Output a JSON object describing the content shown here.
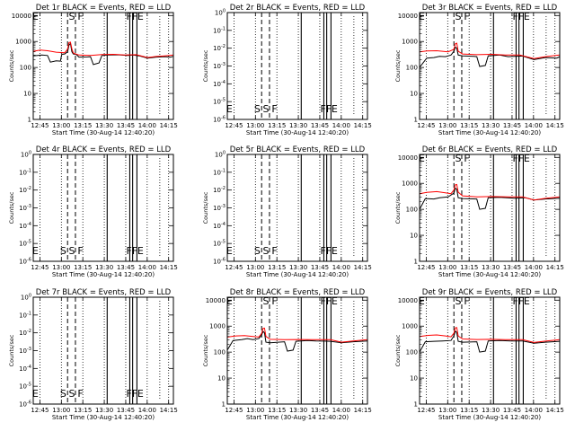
{
  "window": {
    "background": "#ffffff"
  },
  "colors": {
    "events": "#000000",
    "lld": "#ff0000",
    "axes": "#000000"
  },
  "shared": {
    "xlabel": "Start Time (30-Aug-14 12:40:20)",
    "ylabel": "Counts/sec",
    "x_ticks": [
      "12:45",
      "13:00",
      "13:15",
      "13:30",
      "13:45",
      "14:00",
      "14:15"
    ],
    "x_tick_values_min": [
      4.67,
      19.67,
      34.67,
      49.67,
      64.67,
      79.67,
      94.67
    ],
    "x_range_min": [
      0,
      98
    ],
    "y_scale": "log",
    "y_ticks_full": [
      "1",
      "10",
      "100",
      "1000",
      "10000"
    ],
    "y_ticks_flat": [
      "10^0",
      "10^-1",
      "10^-2",
      "10^-3",
      "10^-4",
      "10^-5",
      "10^-6"
    ],
    "dotted_vlines_min": [
      4.67,
      19.67,
      34.67,
      49.67,
      64.67,
      79.67,
      94.67
    ],
    "dashed_vlines_min": [
      24,
      29.5
    ],
    "solid_vlines_min": [
      51.7,
      67.5,
      69.5,
      72.5
    ],
    "bracket_vlines_min": [
      88.5
    ],
    "markers": [
      {
        "text": "E",
        "x_min": 1.5
      },
      {
        "text": "S",
        "x_min": 27
      },
      {
        "text": "F",
        "x_min": 33
      },
      {
        "text": "F",
        "x_min": 67
      },
      {
        "text": "F",
        "x_min": 71
      },
      {
        "text": "E",
        "x_min": 75
      }
    ],
    "markers_flat": [
      {
        "text": "E",
        "x_min": 1.5
      },
      {
        "text": "S",
        "x_min": 21
      },
      {
        "text": "S",
        "x_min": 27
      },
      {
        "text": "F",
        "x_min": 33
      },
      {
        "text": "F",
        "x_min": 67
      },
      {
        "text": "F",
        "x_min": 71
      },
      {
        "text": "E",
        "x_min": 75
      }
    ]
  },
  "chart_data": [
    {
      "type": "line",
      "title": "Det 1r BLACK = Events, RED = LLD",
      "mode": "full",
      "ylim": [
        1,
        13000
      ],
      "series": [
        {
          "color": "black",
          "values": [
            [
              0,
              280
            ],
            [
              6,
              300
            ],
            [
              10,
              290
            ],
            [
              12,
              160
            ],
            [
              16,
              180
            ],
            [
              19,
              175
            ],
            [
              20,
              320
            ],
            [
              22,
              330
            ],
            [
              24,
              400
            ],
            [
              25,
              720
            ],
            [
              26,
              850
            ],
            [
              27,
              400
            ],
            [
              28,
              330
            ],
            [
              30,
              320
            ],
            [
              32,
              250
            ],
            [
              38,
              255
            ],
            [
              40,
              260
            ],
            [
              42,
              130
            ],
            [
              46,
              150
            ],
            [
              48,
              290
            ],
            [
              52,
              300
            ],
            [
              60,
              305
            ],
            [
              66,
              290
            ],
            [
              70,
              300
            ],
            [
              74,
              280
            ],
            [
              80,
              230
            ],
            [
              86,
              250
            ],
            [
              92,
              260
            ],
            [
              96,
              250
            ],
            [
              98,
              270
            ]
          ]
        },
        {
          "color": "red",
          "values": [
            [
              0,
              420
            ],
            [
              5,
              470
            ],
            [
              10,
              440
            ],
            [
              16,
              390
            ],
            [
              22,
              370
            ],
            [
              24,
              500
            ],
            [
              25,
              900
            ],
            [
              26,
              950
            ],
            [
              27,
              520
            ],
            [
              28,
              360
            ],
            [
              32,
              300
            ],
            [
              40,
              290
            ],
            [
              48,
              315
            ],
            [
              56,
              320
            ],
            [
              64,
              300
            ],
            [
              72,
              310
            ],
            [
              80,
              240
            ],
            [
              86,
              265
            ],
            [
              92,
              280
            ],
            [
              98,
              300
            ]
          ]
        }
      ]
    },
    {
      "type": "line",
      "title": "Det 2r BLACK = Events, RED = LLD",
      "mode": "flat",
      "ylim": [
        1e-06,
        1
      ],
      "series": []
    },
    {
      "type": "line",
      "title": "Det 3r BLACK = Events, RED = LLD",
      "mode": "full",
      "ylim": [
        1,
        13000
      ],
      "series": [
        {
          "color": "black",
          "values": [
            [
              0,
              100
            ],
            [
              5,
              230
            ],
            [
              10,
              240
            ],
            [
              14,
              270
            ],
            [
              18,
              260
            ],
            [
              22,
              300
            ],
            [
              24,
              420
            ],
            [
              25,
              600
            ],
            [
              26,
              560
            ],
            [
              27,
              300
            ],
            [
              30,
              280
            ],
            [
              38,
              270
            ],
            [
              40,
              260
            ],
            [
              42,
              110
            ],
            [
              46,
              120
            ],
            [
              48,
              280
            ],
            [
              56,
              300
            ],
            [
              62,
              260
            ],
            [
              66,
              270
            ],
            [
              72,
              275
            ],
            [
              80,
              200
            ],
            [
              88,
              240
            ],
            [
              96,
              230
            ],
            [
              98,
              260
            ]
          ]
        },
        {
          "color": "red",
          "values": [
            [
              0,
              400
            ],
            [
              5,
              430
            ],
            [
              12,
              440
            ],
            [
              20,
              400
            ],
            [
              24,
              500
            ],
            [
              25,
              820
            ],
            [
              26,
              860
            ],
            [
              27,
              420
            ],
            [
              30,
              330
            ],
            [
              40,
              310
            ],
            [
              50,
              320
            ],
            [
              60,
              300
            ],
            [
              70,
              300
            ],
            [
              80,
              220
            ],
            [
              88,
              260
            ],
            [
              98,
              300
            ]
          ]
        }
      ]
    },
    {
      "type": "line",
      "title": "Det 4r BLACK = Events, RED = LLD",
      "mode": "flat",
      "ylim": [
        1e-06,
        1
      ],
      "series": []
    },
    {
      "type": "line",
      "title": "Det 5r BLACK = Events, RED = LLD",
      "mode": "flat",
      "ylim": [
        1e-06,
        1
      ],
      "series": []
    },
    {
      "type": "line",
      "title": "Det 6r BLACK = Events, RED = LLD",
      "mode": "full",
      "ylim": [
        1,
        13000
      ],
      "series": [
        {
          "color": "black",
          "values": [
            [
              0,
              100
            ],
            [
              4,
              260
            ],
            [
              10,
              250
            ],
            [
              14,
              280
            ],
            [
              20,
              300
            ],
            [
              24,
              420
            ],
            [
              25,
              650
            ],
            [
              26,
              600
            ],
            [
              27,
              280
            ],
            [
              30,
              260
            ],
            [
              40,
              250
            ],
            [
              42,
              100
            ],
            [
              46,
              110
            ],
            [
              48,
              280
            ],
            [
              56,
              290
            ],
            [
              66,
              270
            ],
            [
              74,
              280
            ],
            [
              80,
              230
            ],
            [
              88,
              250
            ],
            [
              98,
              270
            ]
          ]
        },
        {
          "color": "red",
          "values": [
            [
              0,
              400
            ],
            [
              5,
              450
            ],
            [
              12,
              480
            ],
            [
              18,
              430
            ],
            [
              22,
              400
            ],
            [
              24,
              560
            ],
            [
              25,
              880
            ],
            [
              26,
              900
            ],
            [
              27,
              460
            ],
            [
              30,
              330
            ],
            [
              40,
              300
            ],
            [
              50,
              310
            ],
            [
              62,
              300
            ],
            [
              72,
              300
            ],
            [
              80,
              230
            ],
            [
              88,
              265
            ],
            [
              98,
              300
            ]
          ]
        }
      ]
    },
    {
      "type": "line",
      "title": "Det 7r BLACK = Events, RED = LLD",
      "mode": "flat",
      "ylim": [
        1e-06,
        1
      ],
      "series": []
    },
    {
      "type": "line",
      "title": "Det 8r BLACK = Events, RED = LLD",
      "mode": "full",
      "ylim": [
        1,
        13000
      ],
      "series": [
        {
          "color": "black",
          "values": [
            [
              0,
              120
            ],
            [
              4,
              280
            ],
            [
              10,
              300
            ],
            [
              14,
              330
            ],
            [
              18,
              300
            ],
            [
              22,
              330
            ],
            [
              24,
              460
            ],
            [
              25,
              620
            ],
            [
              26,
              560
            ],
            [
              27,
              240
            ],
            [
              30,
              230
            ],
            [
              40,
              250
            ],
            [
              42,
              110
            ],
            [
              46,
              120
            ],
            [
              48,
              260
            ],
            [
              56,
              280
            ],
            [
              62,
              270
            ],
            [
              68,
              265
            ],
            [
              72,
              260
            ],
            [
              80,
              230
            ],
            [
              88,
              250
            ],
            [
              98,
              270
            ]
          ]
        },
        {
          "color": "red",
          "values": [
            [
              0,
              380
            ],
            [
              6,
              420
            ],
            [
              12,
              430
            ],
            [
              18,
              400
            ],
            [
              22,
              380
            ],
            [
              24,
              520
            ],
            [
              25,
              820
            ],
            [
              26,
              840
            ],
            [
              27,
              400
            ],
            [
              30,
              310
            ],
            [
              40,
              300
            ],
            [
              50,
              305
            ],
            [
              60,
              300
            ],
            [
              72,
              300
            ],
            [
              80,
              240
            ],
            [
              88,
              270
            ],
            [
              98,
              300
            ]
          ]
        }
      ]
    },
    {
      "type": "line",
      "title": "Det 9r BLACK = Events, RED = LLD",
      "mode": "full",
      "ylim": [
        1,
        13000
      ],
      "series": [
        {
          "color": "black",
          "values": [
            [
              0,
              100
            ],
            [
              4,
              250
            ],
            [
              10,
              260
            ],
            [
              16,
              270
            ],
            [
              22,
              280
            ],
            [
              24,
              420
            ],
            [
              25,
              640
            ],
            [
              26,
              580
            ],
            [
              27,
              260
            ],
            [
              30,
              240
            ],
            [
              40,
              250
            ],
            [
              42,
              100
            ],
            [
              46,
              110
            ],
            [
              48,
              270
            ],
            [
              56,
              280
            ],
            [
              64,
              270
            ],
            [
              72,
              270
            ],
            [
              80,
              220
            ],
            [
              88,
              240
            ],
            [
              98,
              260
            ]
          ]
        },
        {
          "color": "red",
          "values": [
            [
              0,
              400
            ],
            [
              6,
              440
            ],
            [
              12,
              460
            ],
            [
              18,
              420
            ],
            [
              22,
              390
            ],
            [
              24,
              540
            ],
            [
              25,
              860
            ],
            [
              26,
              880
            ],
            [
              27,
              420
            ],
            [
              30,
              320
            ],
            [
              40,
              305
            ],
            [
              50,
              310
            ],
            [
              60,
              300
            ],
            [
              72,
              300
            ],
            [
              80,
              235
            ],
            [
              88,
              265
            ],
            [
              98,
              300
            ]
          ]
        }
      ]
    }
  ]
}
